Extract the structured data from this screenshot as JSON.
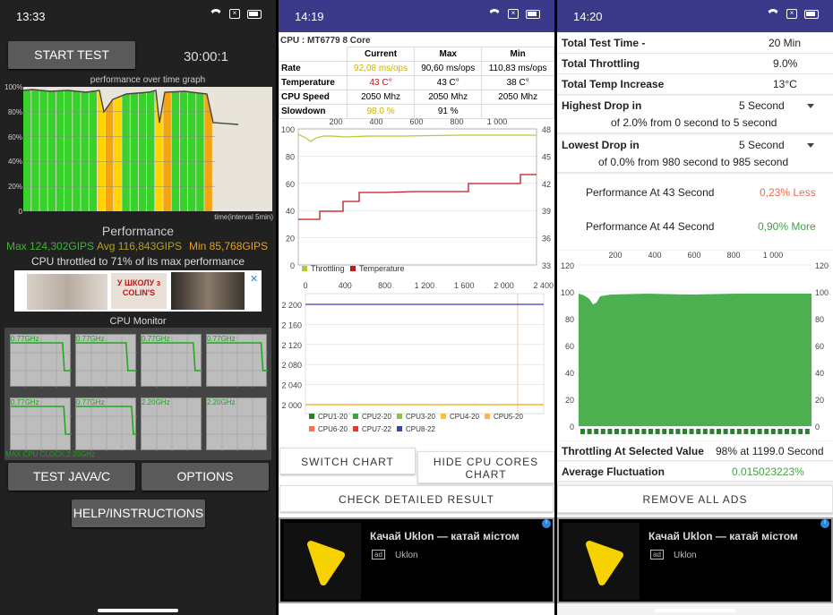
{
  "p1": {
    "status_time": "13:33",
    "start_btn": "START TEST",
    "timer": "30:00:1",
    "graph_title": "performance over time graph",
    "y_ticks": [
      "100%",
      "80%",
      "60%",
      "40%",
      "20%",
      "0"
    ],
    "x_caption": "time(interval 5min)",
    "performance_title": "Performance",
    "max_label": "Max 124,302GIPS",
    "avg_label": "Avg 116,843GIPS",
    "min_label": "Min 85,768GIPS",
    "throttle_text": "CPU throttled to 71% of its max performance",
    "banner_text": "У ШКОЛУ з COLIN'S",
    "cpu_monitor": "CPU Monitor",
    "cpu_freqs": [
      "0.77GHz",
      "0.77GHz",
      "0.77GHz",
      "0.77GHz",
      "0.77GHz",
      "0.77GHz",
      "2.20GHz",
      "2.20GHz"
    ],
    "max_clock": "MAX CPU CLOCK:2.20GHz",
    "btn_java": "TEST JAVA/C",
    "btn_options": "OPTIONS",
    "btn_help": "HELP/INSTRUCTIONS"
  },
  "p2": {
    "status_time": "14:19",
    "cpu_name": "CPU : MT6779 8 Core",
    "headers": [
      "Current",
      "Max",
      "Min"
    ],
    "rows": [
      {
        "label": "Rate",
        "cur": "92,08 ms/ops",
        "max": "90,60 ms/ops",
        "min": "110,83 ms/ops"
      },
      {
        "label": "Temperature",
        "cur": "43 C°",
        "max": "43 C°",
        "min": "38 C°"
      },
      {
        "label": "CPU Speed",
        "cur": "2050 Mhz",
        "max": "2050 Mhz",
        "min": "2050 Mhz"
      },
      {
        "label": "Slowdown",
        "cur": "98.0 %",
        "max": "91 %",
        "min": ""
      }
    ],
    "chart1_top_ticks": [
      "200",
      "400",
      "600",
      "800",
      "1 000"
    ],
    "chart1_left_ticks": [
      "100",
      "80",
      "60",
      "40",
      "20",
      "0"
    ],
    "chart1_right_ticks": [
      "48",
      "45",
      "42",
      "39",
      "36",
      "33"
    ],
    "legend_throttling": "Throttling",
    "legend_temperature": "Temperature",
    "chart2_top_ticks": [
      "0",
      "400",
      "800",
      "1 200",
      "1 600",
      "2 000",
      "2 400"
    ],
    "chart2_left_ticks": [
      "2 200",
      "2 160",
      "2 120",
      "2 080",
      "2 040",
      "2 000"
    ],
    "cpu_legend": [
      "CPU1-20",
      "CPU2-20",
      "CPU3-20",
      "CPU4-20",
      "CPU5-20",
      "CPU6-20",
      "CPU7-22",
      "CPU8-22"
    ],
    "btn_switch": "SWITCH CHART",
    "btn_hide": "HIDE CPU CORES CHART",
    "btn_check": "CHECK DETAILED RESULT",
    "ad_title": "Качай Uklon — катай містом",
    "ad_badge": "ad",
    "ad_advertiser": "Uklon"
  },
  "p3": {
    "status_time": "14:20",
    "total_time_k": "Total Test Time -",
    "total_time_v": "20 Min",
    "total_thr_k": "Total Throttling",
    "total_thr_v": "9.0%",
    "total_temp_k": "Total Temp Increase",
    "total_temp_v": "13°C",
    "highest_k": "Highest Drop in",
    "highest_sel": "5 Second",
    "highest_detail": "of 2.0% from 0 second to 5 second",
    "lowest_k": "Lowest Drop in",
    "lowest_sel": "5 Second",
    "lowest_detail": "of 0.0% from 980 second to 985 second",
    "perf43_k": "Performance At 43 Second",
    "perf43_v": "0,23% Less",
    "perf44_k": "Performance At 44 Second",
    "perf44_v": "0,90% More",
    "chart_top_ticks": [
      "200",
      "400",
      "600",
      "800",
      "1 000"
    ],
    "chart_left_ticks": [
      "120",
      "100",
      "80",
      "60",
      "40",
      "20",
      "0"
    ],
    "chart_right_ticks": [
      "120",
      "100",
      "80",
      "60",
      "40",
      "20",
      "0"
    ],
    "thr_sel_k": "Throttling At Selected Value",
    "thr_sel_v": "98% at 1199.0 Second",
    "avg_fluc_k": "Average Fluctuation",
    "avg_fluc_v": "0.015023223%",
    "btn_remove": "REMOVE ALL ADS",
    "ad_title": "Качай Uklon — катай містом",
    "ad_badge": "ad",
    "ad_advertiser": "Uklon"
  },
  "colors": {
    "green": "#39d12c",
    "yellow": "#ffd400",
    "orange": "#f4a40c",
    "temp_red": "#c0171d",
    "throttle_line": "#b5c931",
    "bar_green": "#4caf50"
  }
}
